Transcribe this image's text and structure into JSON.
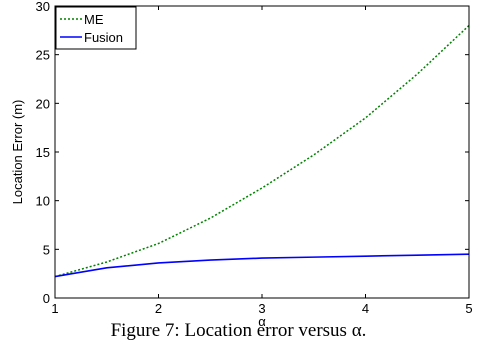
{
  "chart_data": {
    "type": "line",
    "title": "",
    "xlabel": "α",
    "ylabel": "Location Error (m)",
    "xlim": [
      1,
      5
    ],
    "ylim": [
      0,
      30
    ],
    "xticks": [
      1,
      2,
      3,
      4,
      5
    ],
    "yticks": [
      0,
      5,
      10,
      15,
      20,
      25,
      30
    ],
    "grid": false,
    "legend_position": "top-left",
    "series": [
      {
        "name": "ME",
        "color": "#008000",
        "style": "dotted",
        "x": [
          1,
          1.5,
          2,
          2.5,
          3,
          3.5,
          4,
          4.5,
          5
        ],
        "y": [
          2.2,
          3.7,
          5.6,
          8.2,
          11.3,
          14.7,
          18.5,
          23.0,
          28.0
        ]
      },
      {
        "name": "Fusion",
        "color": "#0000ff",
        "style": "solid",
        "x": [
          1,
          1.5,
          2,
          2.5,
          3,
          3.5,
          4,
          4.5,
          5
        ],
        "y": [
          2.2,
          3.1,
          3.6,
          3.9,
          4.1,
          4.2,
          4.3,
          4.4,
          4.5
        ]
      }
    ]
  },
  "caption": "Figure 7: Location error versus α."
}
